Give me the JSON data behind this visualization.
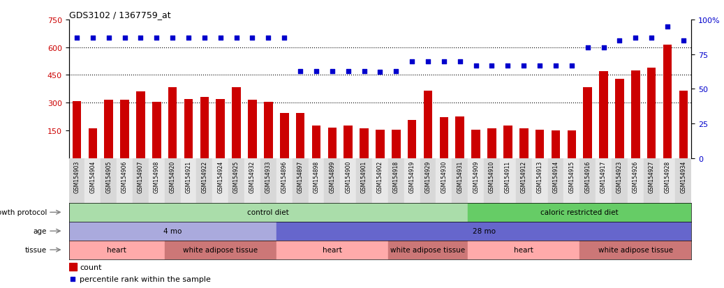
{
  "title": "GDS3102 / 1367759_at",
  "samples": [
    "GSM154903",
    "GSM154904",
    "GSM154905",
    "GSM154906",
    "GSM154907",
    "GSM154908",
    "GSM154920",
    "GSM154921",
    "GSM154922",
    "GSM154924",
    "GSM154925",
    "GSM154932",
    "GSM154933",
    "GSM154896",
    "GSM154897",
    "GSM154898",
    "GSM154899",
    "GSM154900",
    "GSM154901",
    "GSM154902",
    "GSM154918",
    "GSM154919",
    "GSM154929",
    "GSM154930",
    "GSM154931",
    "GSM154909",
    "GSM154910",
    "GSM154911",
    "GSM154912",
    "GSM154913",
    "GSM154914",
    "GSM154915",
    "GSM154916",
    "GSM154917",
    "GSM154923",
    "GSM154926",
    "GSM154927",
    "GSM154928",
    "GSM154934"
  ],
  "bar_values": [
    310,
    160,
    315,
    315,
    360,
    305,
    385,
    320,
    330,
    320,
    385,
    315,
    305,
    245,
    245,
    175,
    165,
    175,
    160,
    155,
    155,
    205,
    365,
    220,
    225,
    155,
    162,
    175,
    162,
    155,
    148,
    148,
    385,
    470,
    430,
    475,
    490,
    615,
    365
  ],
  "percentile_values": [
    87,
    87,
    87,
    87,
    87,
    87,
    87,
    87,
    87,
    87,
    87,
    87,
    87,
    87,
    63,
    63,
    63,
    63,
    63,
    62,
    63,
    70,
    70,
    70,
    70,
    67,
    67,
    67,
    67,
    67,
    67,
    67,
    80,
    80,
    85,
    87,
    87,
    95,
    85
  ],
  "bar_color": "#cc0000",
  "percentile_color": "#0000cc",
  "ylim_left": [
    0,
    750
  ],
  "ylim_right": [
    0,
    100
  ],
  "yticks_left": [
    150,
    300,
    450,
    600,
    750
  ],
  "yticks_right": [
    0,
    25,
    50,
    75,
    100
  ],
  "hline_values": [
    300,
    450,
    600
  ],
  "growth_protocol_regions": [
    {
      "label": "control diet",
      "start": 0,
      "end": 25,
      "color": "#aaddaa"
    },
    {
      "label": "caloric restricted diet",
      "start": 25,
      "end": 39,
      "color": "#66cc66"
    }
  ],
  "age_regions": [
    {
      "label": "4 mo",
      "start": 0,
      "end": 13,
      "color": "#aaaadd"
    },
    {
      "label": "28 mo",
      "start": 13,
      "end": 39,
      "color": "#6666cc"
    }
  ],
  "tissue_regions": [
    {
      "label": "heart",
      "start": 0,
      "end": 6,
      "color": "#ffaaaa"
    },
    {
      "label": "white adipose tissue",
      "start": 6,
      "end": 13,
      "color": "#cc7777"
    },
    {
      "label": "heart",
      "start": 13,
      "end": 20,
      "color": "#ffaaaa"
    },
    {
      "label": "white adipose tissue",
      "start": 20,
      "end": 25,
      "color": "#cc7777"
    },
    {
      "label": "heart",
      "start": 25,
      "end": 32,
      "color": "#ffaaaa"
    },
    {
      "label": "white adipose tissue",
      "start": 32,
      "end": 39,
      "color": "#cc7777"
    }
  ],
  "row_labels": [
    "growth protocol",
    "age",
    "tissue"
  ],
  "legend_items": [
    {
      "color": "#cc0000",
      "label": "count"
    },
    {
      "color": "#0000cc",
      "label": "percentile rank within the sample"
    }
  ],
  "background_color": "#ffffff",
  "tick_label_area_color": "#dddddd"
}
